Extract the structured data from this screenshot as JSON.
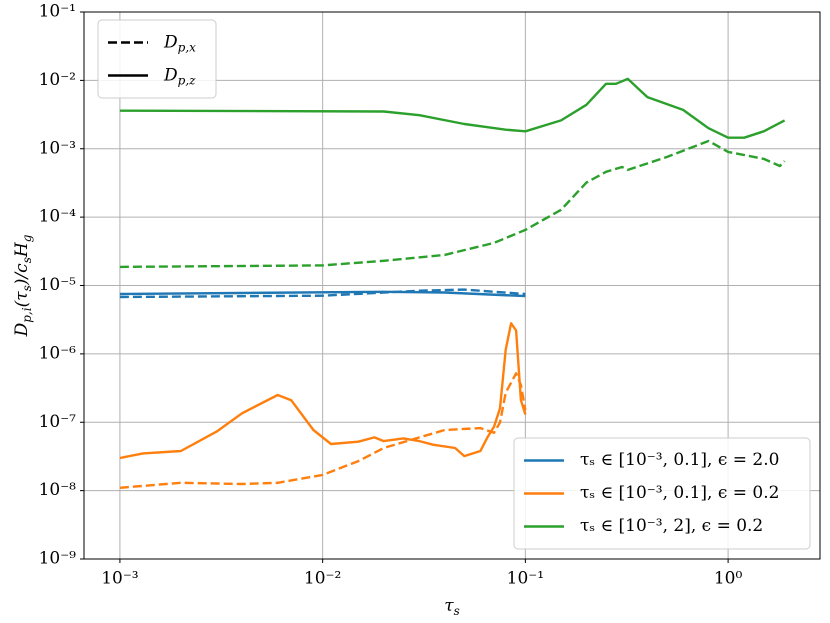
{
  "chart_data": {
    "type": "line",
    "xscale": "log",
    "yscale": "log",
    "grid": true,
    "xlim": [
      0.000665,
      2.84
    ],
    "ylim": [
      1e-09,
      0.1
    ],
    "xticks": [
      {
        "value": 0.001,
        "label": "10⁻³"
      },
      {
        "value": 0.01,
        "label": "10⁻²"
      },
      {
        "value": 0.1,
        "label": "10⁻¹"
      },
      {
        "value": 1,
        "label": "10⁰"
      }
    ],
    "yticks": [
      {
        "value": 1e-09,
        "label": "10⁻⁹"
      },
      {
        "value": 1e-08,
        "label": "10⁻⁸"
      },
      {
        "value": 1e-07,
        "label": "10⁻⁷"
      },
      {
        "value": 1e-06,
        "label": "10⁻⁶"
      },
      {
        "value": 1e-05,
        "label": "10⁻⁵"
      },
      {
        "value": 0.0001,
        "label": "10⁻⁴"
      },
      {
        "value": 0.001,
        "label": "10⁻³"
      },
      {
        "value": 0.01,
        "label": "10⁻²"
      },
      {
        "value": 0.1,
        "label": "10⁻¹"
      }
    ],
    "xlabel": [
      {
        "t": "τ"
      },
      {
        "t": "s",
        "sub": true
      }
    ],
    "ylabel": [
      {
        "t": "D"
      },
      {
        "t": "p,i",
        "sub": true
      },
      {
        "t": "(τ"
      },
      {
        "t": "s",
        "sub": true
      },
      {
        "t": ")/c"
      },
      {
        "t": "s",
        "sub": true
      },
      {
        "t": "H"
      },
      {
        "t": "g",
        "sub": true
      }
    ],
    "legends": [
      {
        "loc": "upper left",
        "entries": [
          {
            "label": [
              {
                "t": "D"
              },
              {
                "t": "p,x",
                "sub": true
              }
            ],
            "style": "dashed",
            "color": "#000000"
          },
          {
            "label": [
              {
                "t": "D"
              },
              {
                "t": "p,z",
                "sub": true
              }
            ],
            "style": "solid",
            "color": "#000000"
          }
        ]
      },
      {
        "loc": "lower right",
        "entries": [
          {
            "label": "τₛ ∈ [10⁻³, 0.1], ϵ = 2.0",
            "style": "solid",
            "color": "#1f77b4"
          },
          {
            "label": "τₛ ∈ [10⁻³, 0.1], ϵ = 0.2",
            "style": "solid",
            "color": "#ff7f0e"
          },
          {
            "label": "τₛ ∈ [10⁻³, 2], ϵ = 0.2",
            "style": "solid",
            "color": "#2ca02c"
          }
        ]
      }
    ],
    "series": [
      {
        "color": "#2ca02c",
        "style": "solid",
        "x": [
          0.001,
          0.02,
          0.03,
          0.05,
          0.08,
          0.1,
          0.15,
          0.2,
          0.25,
          0.28,
          0.32,
          0.4,
          0.6,
          0.8,
          1.0,
          1.2,
          1.5,
          1.9
        ],
        "values": [
          0.0036,
          0.0035,
          0.0031,
          0.0023,
          0.0019,
          0.0018,
          0.0026,
          0.0044,
          0.0089,
          0.0089,
          0.0105,
          0.0057,
          0.0037,
          0.002,
          0.00145,
          0.00145,
          0.0018,
          0.0026
        ]
      },
      {
        "color": "#2ca02c",
        "style": "dashed",
        "x": [
          0.001,
          0.01,
          0.02,
          0.04,
          0.07,
          0.1,
          0.15,
          0.2,
          0.25,
          0.3,
          0.32,
          0.5,
          0.8,
          1.0,
          1.5,
          1.8,
          1.9
        ],
        "values": [
          1.87e-05,
          1.97e-05,
          2.3e-05,
          2.8e-05,
          4.2e-05,
          6.5e-05,
          0.000128,
          0.00032,
          0.00046,
          0.00054,
          0.00049,
          0.00076,
          0.0013,
          0.0009,
          0.00071,
          0.00056,
          0.00066
        ]
      },
      {
        "color": "#1f77b4",
        "style": "solid",
        "x": [
          0.001,
          0.02,
          0.04,
          0.1
        ],
        "values": [
          7.5e-06,
          8.1e-06,
          7.9e-06,
          7e-06
        ]
      },
      {
        "color": "#1f77b4",
        "style": "dashed",
        "x": [
          0.001,
          0.01,
          0.03,
          0.05,
          0.1
        ],
        "values": [
          6.8e-06,
          7.1e-06,
          8.4e-06,
          8.7e-06,
          7.5e-06
        ]
      },
      {
        "color": "#ff7f0e",
        "style": "solid",
        "x": [
          0.001,
          0.0013,
          0.002,
          0.003,
          0.004,
          0.006,
          0.007,
          0.009,
          0.011,
          0.015,
          0.018,
          0.02,
          0.025,
          0.03,
          0.035,
          0.045,
          0.05,
          0.06,
          0.065,
          0.07,
          0.075,
          0.08,
          0.085,
          0.09,
          0.095,
          0.1
        ],
        "values": [
          3e-08,
          3.5e-08,
          3.8e-08,
          7.3e-08,
          1.35e-07,
          2.5e-07,
          2.1e-07,
          7.7e-08,
          4.8e-08,
          5.2e-08,
          6e-08,
          5.3e-08,
          5.8e-08,
          5.3e-08,
          4.7e-08,
          4.2e-08,
          3.2e-08,
          3.8e-08,
          6e-08,
          8.6e-08,
          1.6e-07,
          1.15e-06,
          2.8e-06,
          2.2e-06,
          2.1e-07,
          1.3e-07
        ]
      },
      {
        "color": "#ff7f0e",
        "style": "dashed",
        "x": [
          0.001,
          0.002,
          0.004,
          0.006,
          0.01,
          0.015,
          0.02,
          0.03,
          0.04,
          0.06,
          0.07,
          0.075,
          0.08,
          0.09,
          0.095,
          0.1
        ],
        "values": [
          1.1e-08,
          1.3e-08,
          1.25e-08,
          1.3e-08,
          1.7e-08,
          2.7e-08,
          4.2e-08,
          6e-08,
          7.7e-08,
          8.2e-08,
          7e-08,
          9.9e-08,
          2.7e-07,
          5.2e-07,
          3.5e-07,
          1.5e-07
        ]
      }
    ]
  }
}
